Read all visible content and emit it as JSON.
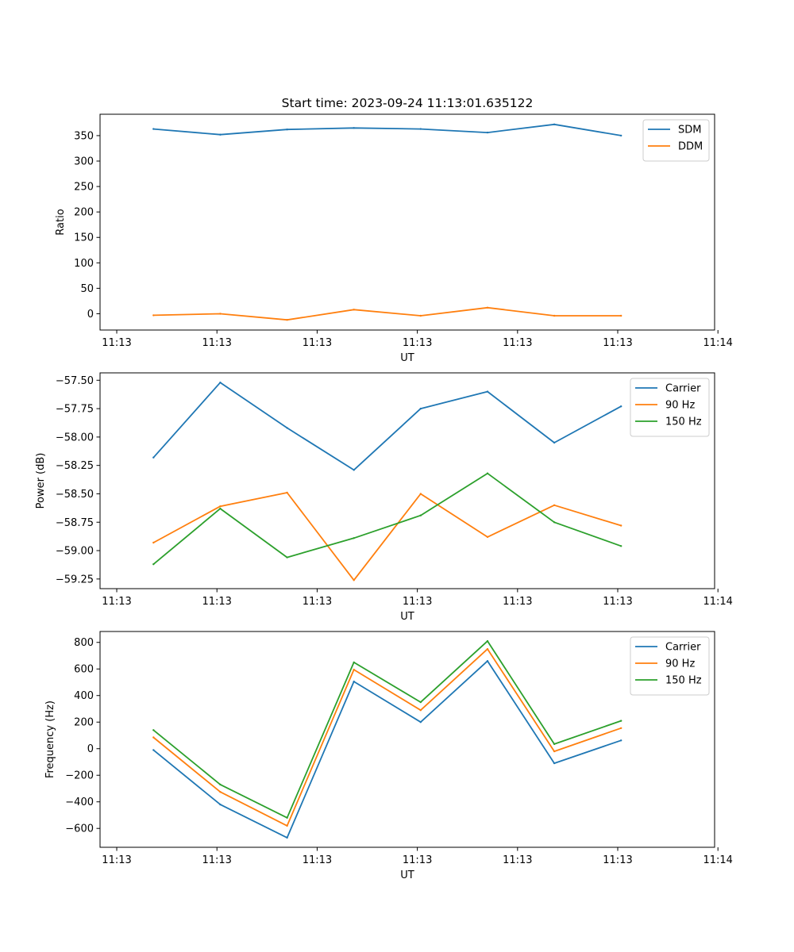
{
  "figure_title": "Start time: 2023-09-24 11:13:01.635122",
  "chart_data": [
    {
      "type": "line",
      "name": "ratio",
      "title": "Start time: 2023-09-24 11:13:01.635122",
      "xlabel": "UT",
      "ylabel": "Ratio",
      "x": [
        1,
        2,
        3,
        4,
        5,
        6,
        7,
        8
      ],
      "xlim": [
        0.2,
        9.4
      ],
      "x_ticks": [
        0.45,
        1.95,
        3.45,
        4.95,
        6.45,
        7.95,
        9.45
      ],
      "x_tick_labels": [
        "11:13",
        "11:13",
        "11:13",
        "11:13",
        "11:13",
        "11:13",
        "11:14"
      ],
      "ylim": [
        -32,
        392
      ],
      "y_ticks": [
        0,
        50,
        100,
        150,
        200,
        250,
        300,
        350
      ],
      "y_tick_labels": [
        "0",
        "50",
        "100",
        "150",
        "200",
        "250",
        "300",
        "350"
      ],
      "legend": "upper right",
      "series": [
        {
          "name": "SDM",
          "color": "#1f77b4",
          "values": [
            363,
            352,
            362,
            365,
            363,
            356,
            372,
            350
          ]
        },
        {
          "name": "DDM",
          "color": "#ff7f0e",
          "values": [
            -3,
            0,
            -12,
            8,
            -4,
            12,
            -4,
            -4
          ]
        }
      ]
    },
    {
      "type": "line",
      "name": "power",
      "title": "",
      "xlabel": "UT",
      "ylabel": "Power (dB)",
      "x": [
        1,
        2,
        3,
        4,
        5,
        6,
        7,
        8
      ],
      "xlim": [
        0.2,
        9.4
      ],
      "x_ticks": [
        0.45,
        1.95,
        3.45,
        4.95,
        6.45,
        7.95,
        9.45
      ],
      "x_tick_labels": [
        "11:13",
        "11:13",
        "11:13",
        "11:13",
        "11:13",
        "11:13",
        "11:14"
      ],
      "ylim": [
        -59.335,
        -57.435
      ],
      "y_ticks": [
        -59.25,
        -59.0,
        -58.75,
        -58.5,
        -58.25,
        -58.0,
        -57.75,
        -57.5
      ],
      "y_tick_labels": [
        "−59.25",
        "−59.00",
        "−58.75",
        "−58.50",
        "−58.25",
        "−58.00",
        "−57.75",
        "−57.50"
      ],
      "legend": "upper right",
      "series": [
        {
          "name": "Carrier",
          "color": "#1f77b4",
          "values": [
            -58.18,
            -57.52,
            -57.92,
            -58.29,
            -57.75,
            -57.6,
            -58.05,
            -57.73
          ]
        },
        {
          "name": "90 Hz",
          "color": "#ff7f0e",
          "values": [
            -58.93,
            -58.61,
            -58.49,
            -59.26,
            -58.5,
            -58.88,
            -58.6,
            -58.78
          ]
        },
        {
          "name": "150 Hz",
          "color": "#2ca02c",
          "values": [
            -59.12,
            -58.63,
            -59.06,
            -58.89,
            -58.69,
            -58.32,
            -58.75,
            -58.96
          ]
        }
      ]
    },
    {
      "type": "line",
      "name": "frequency",
      "title": "",
      "xlabel": "UT",
      "ylabel": "Frequency (Hz)",
      "x": [
        1,
        2,
        3,
        4,
        5,
        6,
        7,
        8
      ],
      "xlim": [
        0.2,
        9.4
      ],
      "x_ticks": [
        0.45,
        1.95,
        3.45,
        4.95,
        6.45,
        7.95,
        9.45
      ],
      "x_tick_labels": [
        "11:13",
        "11:13",
        "11:13",
        "11:13",
        "11:13",
        "11:13",
        "11:14"
      ],
      "ylim": [
        -742,
        882
      ],
      "y_ticks": [
        -600,
        -400,
        -200,
        0,
        200,
        400,
        600,
        800
      ],
      "y_tick_labels": [
        "−600",
        "−400",
        "−200",
        "0",
        "200",
        "400",
        "600",
        "800"
      ],
      "legend": "upper right",
      "series": [
        {
          "name": "Carrier",
          "color": "#1f77b4",
          "values": [
            -10,
            -420,
            -670,
            505,
            200,
            660,
            -110,
            62
          ]
        },
        {
          "name": "90 Hz",
          "color": "#ff7f0e",
          "values": [
            85,
            -325,
            -580,
            595,
            290,
            750,
            -20,
            155
          ]
        },
        {
          "name": "150 Hz",
          "color": "#2ca02c",
          "values": [
            140,
            -270,
            -520,
            650,
            350,
            810,
            35,
            210
          ]
        }
      ]
    }
  ]
}
